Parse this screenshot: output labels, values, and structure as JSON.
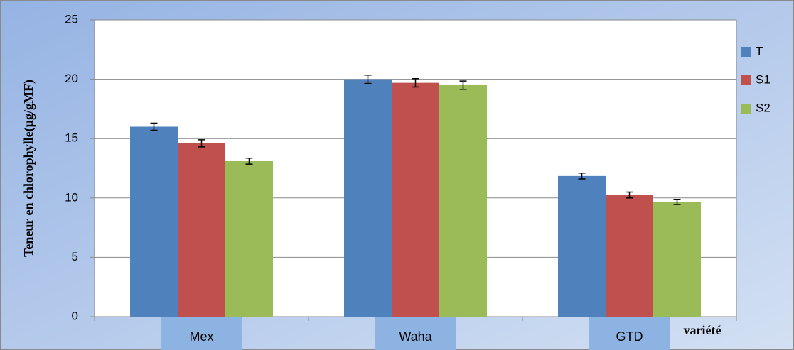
{
  "chart_data": {
    "type": "bar",
    "y_label": "Teneur en chlorophylle(µg/gMF)",
    "x_label": "variété",
    "categories": [
      "Mex",
      "Waha",
      "GTD"
    ],
    "series": [
      {
        "name": "T",
        "color": "#4f81bd",
        "values": [
          16.0,
          20.0,
          11.85
        ],
        "errors": [
          0.3,
          0.35,
          0.25
        ]
      },
      {
        "name": "S1",
        "color": "#c0504d",
        "values": [
          14.6,
          19.7,
          10.25
        ],
        "errors": [
          0.3,
          0.35,
          0.25
        ]
      },
      {
        "name": "S2",
        "color": "#9bbb59",
        "values": [
          13.1,
          19.5,
          9.65
        ],
        "errors": [
          0.25,
          0.35,
          0.2
        ]
      }
    ],
    "ylim": [
      0,
      25
    ],
    "yticks": [
      0,
      5,
      10,
      15,
      20,
      25
    ],
    "grid": true,
    "legend": "right"
  }
}
